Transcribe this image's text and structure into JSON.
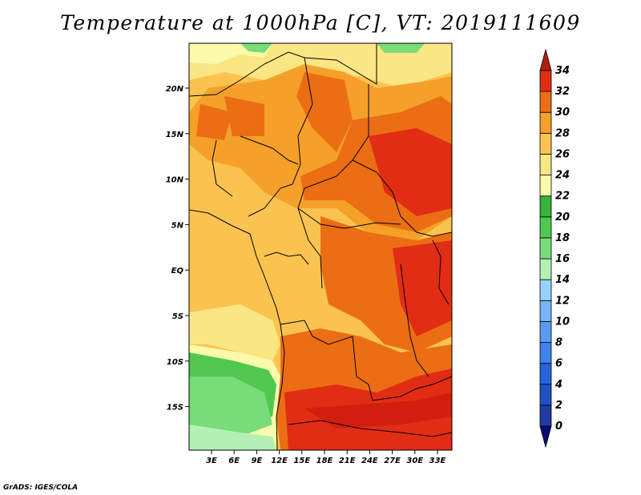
{
  "title": "Temperature at 1000hPa [C], VT: 2019111609",
  "footer": "GrADS: IGES/COLA",
  "map": {
    "lon_labels": [
      "3E",
      "6E",
      "9E",
      "12E",
      "15E",
      "18E",
      "21E",
      "24E",
      "27E",
      "30E",
      "33E"
    ],
    "lat_labels": [
      "20N",
      "15N",
      "10N",
      "5N",
      "EQ",
      "5S",
      "10S",
      "15S"
    ]
  },
  "colorbar": {
    "levels": [
      "0",
      "2",
      "4",
      "6",
      "8",
      "10",
      "12",
      "14",
      "16",
      "18",
      "20",
      "22",
      "24",
      "26",
      "28",
      "30",
      "32",
      "34"
    ],
    "colors": [
      "#0a0a78",
      "#1e3ca0",
      "#1e50c8",
      "#2864dc",
      "#3c82f0",
      "#5a9cf5",
      "#78b4fa",
      "#96d2fa",
      "#b4f0b4",
      "#78dc78",
      "#50c850",
      "#37b437",
      "#fafaaa",
      "#fae682",
      "#fac350",
      "#f5a028",
      "#eb6e14",
      "#e12d14",
      "#b41e0f"
    ]
  }
}
